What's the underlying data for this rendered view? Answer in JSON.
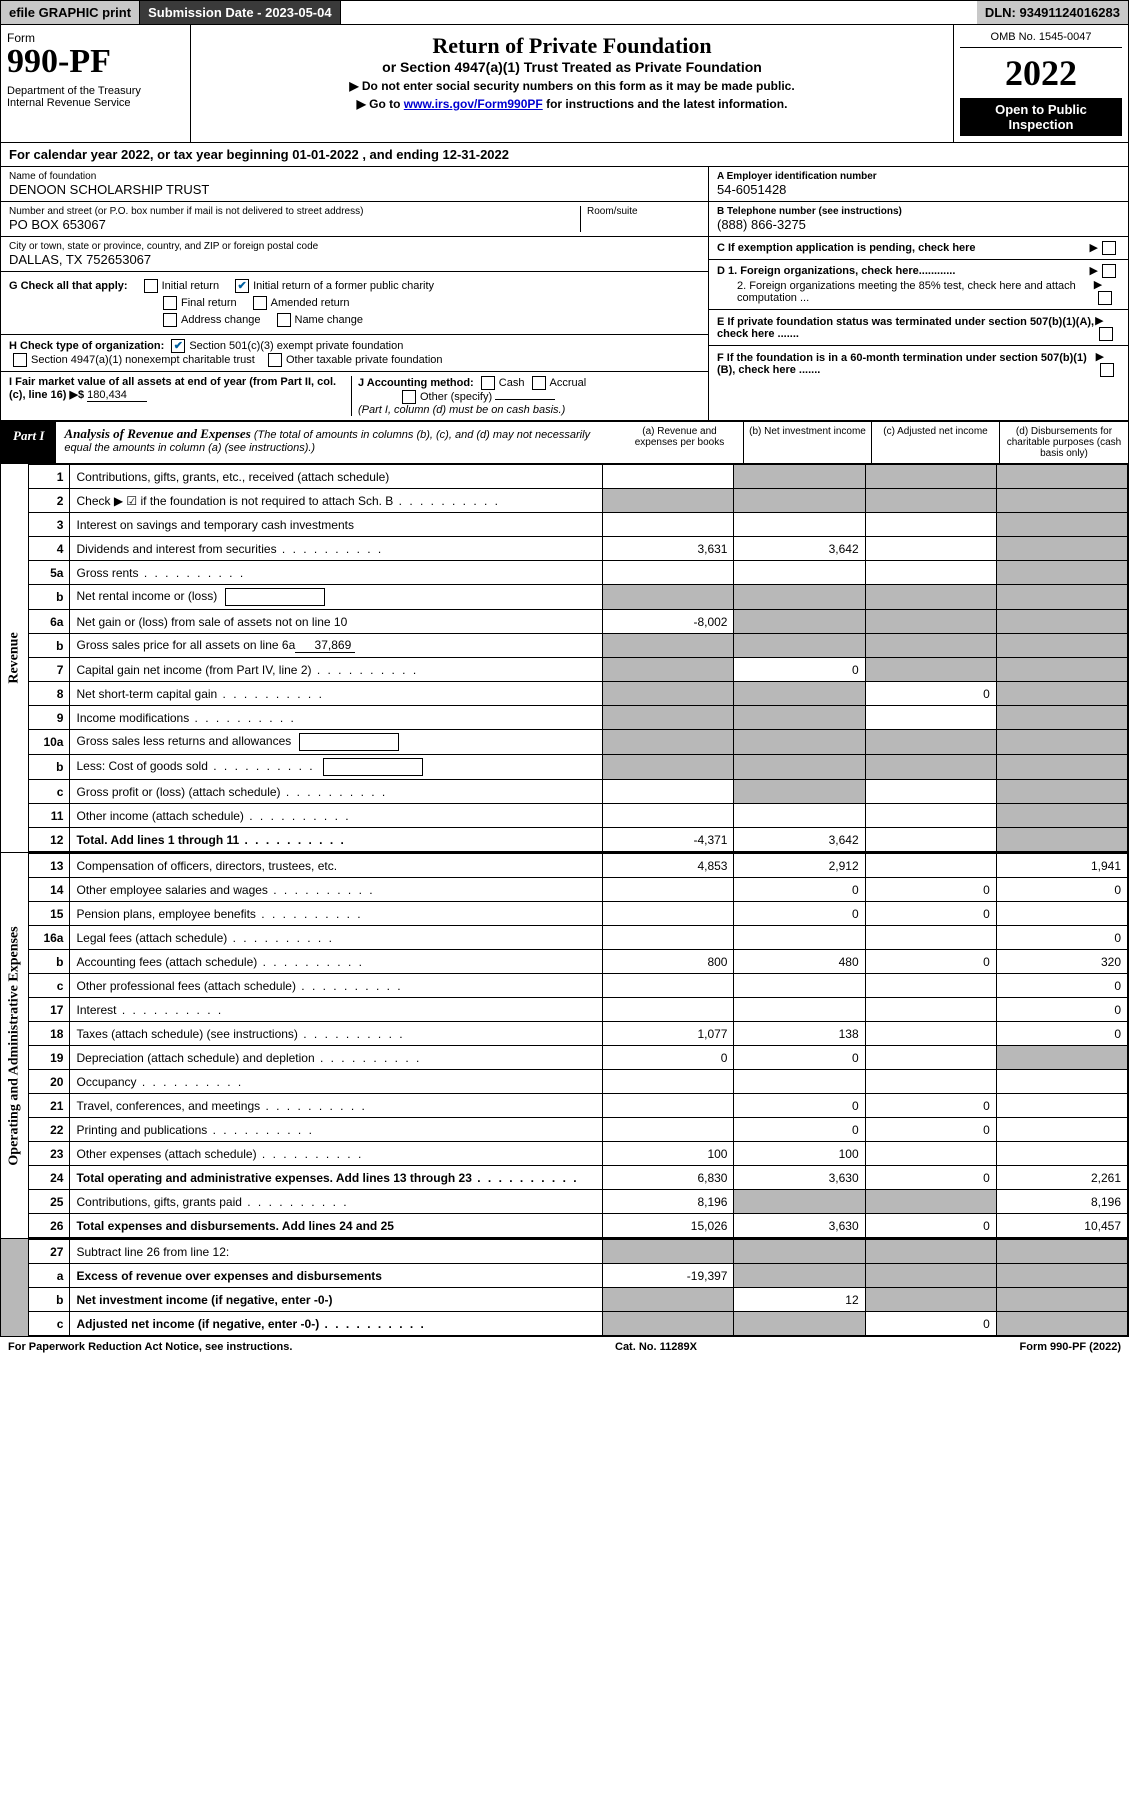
{
  "top": {
    "efile": "efile GRAPHIC print",
    "submission_label": "Submission Date - 2023-05-04",
    "dln": "DLN: 93491124016283"
  },
  "header": {
    "form_label": "Form",
    "form_number": "990-PF",
    "dept": "Department of the Treasury\nInternal Revenue Service",
    "title": "Return of Private Foundation",
    "subtitle": "or Section 4947(a)(1) Trust Treated as Private Foundation",
    "instr1": "▶ Do not enter social security numbers on this form as it may be made public.",
    "instr2_pre": "▶ Go to ",
    "instr2_link": "www.irs.gov/Form990PF",
    "instr2_post": " for instructions and the latest information.",
    "omb": "OMB No. 1545-0047",
    "year": "2022",
    "open_public": "Open to Public Inspection"
  },
  "cal_year": "For calendar year 2022, or tax year beginning 01-01-2022                    , and ending 12-31-2022",
  "info": {
    "name_label": "Name of foundation",
    "name": "DENOON SCHOLARSHIP TRUST",
    "addr_label": "Number and street (or P.O. box number if mail is not delivered to street address)",
    "addr": "PO BOX 653067",
    "room_label": "Room/suite",
    "city_label": "City or town, state or province, country, and ZIP or foreign postal code",
    "city": "DALLAS, TX  752653067",
    "ein_label": "A Employer identification number",
    "ein": "54-6051428",
    "phone_label": "B Telephone number (see instructions)",
    "phone": "(888) 866-3275",
    "c_label": "C If exemption application is pending, check here",
    "d1": "D 1. Foreign organizations, check here............",
    "d2": "2. Foreign organizations meeting the 85% test, check here and attach computation ...",
    "e": "E  If private foundation status was terminated under section 507(b)(1)(A), check here .......",
    "f": "F  If the foundation is in a 60-month termination under section 507(b)(1)(B), check here .......",
    "g_label": "G Check all that apply:",
    "g_opts": [
      "Initial return",
      "Initial return of a former public charity",
      "Final return",
      "Amended return",
      "Address change",
      "Name change"
    ],
    "h_label": "H Check type of organization:",
    "h_opts": [
      "Section 501(c)(3) exempt private foundation",
      "Section 4947(a)(1) nonexempt charitable trust",
      "Other taxable private foundation"
    ],
    "i_label": "I Fair market value of all assets at end of year (from Part II, col. (c), line 16) ▶$",
    "i_value": "180,434",
    "j_label": "J Accounting method:",
    "j_opts": [
      "Cash",
      "Accrual",
      "Other (specify)"
    ],
    "j_note": "(Part I, column (d) must be on cash basis.)"
  },
  "part1": {
    "label": "Part I",
    "title": "Analysis of Revenue and Expenses",
    "title_note": "(The total of amounts in columns (b), (c), and (d) may not necessarily equal the amounts in column (a) (see instructions).)",
    "cols": {
      "a": "(a)  Revenue and expenses per books",
      "b": "(b)  Net investment income",
      "c": "(c)  Adjusted net income",
      "d": "(d)  Disbursements for charitable purposes (cash basis only)"
    }
  },
  "side_labels": {
    "revenue": "Revenue",
    "expenses": "Operating and Administrative Expenses"
  },
  "rows": [
    {
      "n": "1",
      "t": "Contributions, gifts, grants, etc., received (attach schedule)",
      "a": "",
      "b": "shade",
      "c": "shade",
      "d": "shade"
    },
    {
      "n": "2",
      "t": "Check ▶ ☑ if the foundation is not required to attach Sch. B",
      "dots": true,
      "a": "shade",
      "b": "shade",
      "c": "shade",
      "d": "shade"
    },
    {
      "n": "3",
      "t": "Interest on savings and temporary cash investments",
      "a": "",
      "b": "",
      "c": "",
      "d": "shade"
    },
    {
      "n": "4",
      "t": "Dividends and interest from securities",
      "dots": true,
      "a": "3,631",
      "b": "3,642",
      "c": "",
      "d": "shade"
    },
    {
      "n": "5a",
      "t": "Gross rents",
      "dots": true,
      "a": "",
      "b": "",
      "c": "",
      "d": "shade"
    },
    {
      "n": "b",
      "t": "Net rental income or (loss)",
      "box": true,
      "a": "shade",
      "b": "shade",
      "c": "shade",
      "d": "shade"
    },
    {
      "n": "6a",
      "t": "Net gain or (loss) from sale of assets not on line 10",
      "a": "-8,002",
      "b": "shade",
      "c": "shade",
      "d": "shade"
    },
    {
      "n": "b",
      "t": "Gross sales price for all assets on line 6a",
      "ul": "37,869",
      "a": "shade",
      "b": "shade",
      "c": "shade",
      "d": "shade"
    },
    {
      "n": "7",
      "t": "Capital gain net income (from Part IV, line 2)",
      "dots": true,
      "a": "shade",
      "b": "0",
      "c": "shade",
      "d": "shade"
    },
    {
      "n": "8",
      "t": "Net short-term capital gain",
      "dots": true,
      "a": "shade",
      "b": "shade",
      "c": "0",
      "d": "shade"
    },
    {
      "n": "9",
      "t": "Income modifications",
      "dots": true,
      "a": "shade",
      "b": "shade",
      "c": "",
      "d": "shade"
    },
    {
      "n": "10a",
      "t": "Gross sales less returns and allowances",
      "box": true,
      "a": "shade",
      "b": "shade",
      "c": "shade",
      "d": "shade"
    },
    {
      "n": "b",
      "t": "Less: Cost of goods sold",
      "dots": true,
      "box": true,
      "a": "shade",
      "b": "shade",
      "c": "shade",
      "d": "shade"
    },
    {
      "n": "c",
      "t": "Gross profit or (loss) (attach schedule)",
      "dots": true,
      "a": "",
      "b": "shade",
      "c": "",
      "d": "shade"
    },
    {
      "n": "11",
      "t": "Other income (attach schedule)",
      "dots": true,
      "a": "",
      "b": "",
      "c": "",
      "d": "shade"
    },
    {
      "n": "12",
      "t": "Total. Add lines 1 through 11",
      "dots": true,
      "bold": true,
      "a": "-4,371",
      "b": "3,642",
      "c": "",
      "d": "shade"
    }
  ],
  "exp_rows": [
    {
      "n": "13",
      "t": "Compensation of officers, directors, trustees, etc.",
      "a": "4,853",
      "b": "2,912",
      "c": "",
      "d": "1,941"
    },
    {
      "n": "14",
      "t": "Other employee salaries and wages",
      "dots": true,
      "a": "",
      "b": "0",
      "c": "0",
      "d": "0"
    },
    {
      "n": "15",
      "t": "Pension plans, employee benefits",
      "dots": true,
      "a": "",
      "b": "0",
      "c": "0",
      "d": ""
    },
    {
      "n": "16a",
      "t": "Legal fees (attach schedule)",
      "dots": true,
      "a": "",
      "b": "",
      "c": "",
      "d": "0"
    },
    {
      "n": "b",
      "t": "Accounting fees (attach schedule)",
      "dots": true,
      "a": "800",
      "b": "480",
      "c": "0",
      "d": "320"
    },
    {
      "n": "c",
      "t": "Other professional fees (attach schedule)",
      "dots": true,
      "a": "",
      "b": "",
      "c": "",
      "d": "0"
    },
    {
      "n": "17",
      "t": "Interest",
      "dots": true,
      "a": "",
      "b": "",
      "c": "",
      "d": "0"
    },
    {
      "n": "18",
      "t": "Taxes (attach schedule) (see instructions)",
      "dots": true,
      "a": "1,077",
      "b": "138",
      "c": "",
      "d": "0"
    },
    {
      "n": "19",
      "t": "Depreciation (attach schedule) and depletion",
      "dots": true,
      "a": "0",
      "b": "0",
      "c": "",
      "d": "shade"
    },
    {
      "n": "20",
      "t": "Occupancy",
      "dots": true,
      "a": "",
      "b": "",
      "c": "",
      "d": ""
    },
    {
      "n": "21",
      "t": "Travel, conferences, and meetings",
      "dots": true,
      "a": "",
      "b": "0",
      "c": "0",
      "d": ""
    },
    {
      "n": "22",
      "t": "Printing and publications",
      "dots": true,
      "a": "",
      "b": "0",
      "c": "0",
      "d": ""
    },
    {
      "n": "23",
      "t": "Other expenses (attach schedule)",
      "dots": true,
      "a": "100",
      "b": "100",
      "c": "",
      "d": ""
    },
    {
      "n": "24",
      "t": "Total operating and administrative expenses. Add lines 13 through 23",
      "dots": true,
      "bold": true,
      "a": "6,830",
      "b": "3,630",
      "c": "0",
      "d": "2,261"
    },
    {
      "n": "25",
      "t": "Contributions, gifts, grants paid",
      "dots": true,
      "a": "8,196",
      "b": "shade",
      "c": "shade",
      "d": "8,196"
    },
    {
      "n": "26",
      "t": "Total expenses and disbursements. Add lines 24 and 25",
      "bold": true,
      "a": "15,026",
      "b": "3,630",
      "c": "0",
      "d": "10,457"
    }
  ],
  "bottom_rows": [
    {
      "n": "27",
      "t": "Subtract line 26 from line 12:",
      "a": "shade",
      "b": "shade",
      "c": "shade",
      "d": "shade"
    },
    {
      "n": "a",
      "t": "Excess of revenue over expenses and disbursements",
      "bold": true,
      "a": "-19,397",
      "b": "shade",
      "c": "shade",
      "d": "shade"
    },
    {
      "n": "b",
      "t": "Net investment income (if negative, enter -0-)",
      "bold": true,
      "a": "shade",
      "b": "12",
      "c": "shade",
      "d": "shade"
    },
    {
      "n": "c",
      "t": "Adjusted net income (if negative, enter -0-)",
      "bold": true,
      "dots": true,
      "a": "shade",
      "b": "shade",
      "c": "0",
      "d": "shade"
    }
  ],
  "footer": {
    "left": "For Paperwork Reduction Act Notice, see instructions.",
    "mid": "Cat. No. 11289X",
    "right": "Form 990-PF (2022)"
  }
}
